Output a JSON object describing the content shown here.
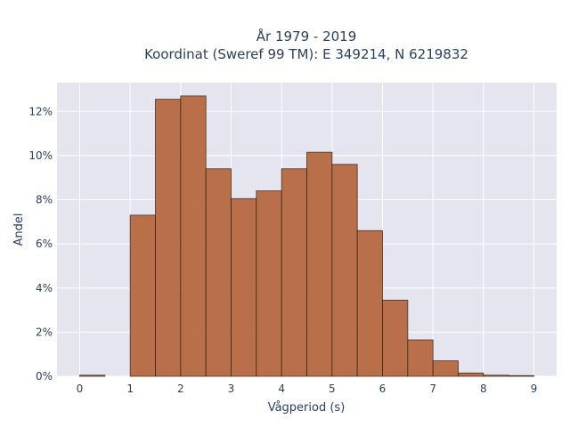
{
  "chart_data": {
    "type": "bar",
    "title_line1": "År 1979 - 2019",
    "title_line2": "Koordinat (Sweref 99 TM): E 349214, N 6219832",
    "xlabel": "Vågperiod (s)",
    "ylabel": "Andel",
    "bin_width": 0.5,
    "bins": [
      {
        "x0": 0.0,
        "value": 0.05
      },
      {
        "x0": 0.5,
        "value": 0.0
      },
      {
        "x0": 1.0,
        "value": 7.3
      },
      {
        "x0": 1.5,
        "value": 12.55
      },
      {
        "x0": 2.0,
        "value": 12.7
      },
      {
        "x0": 2.5,
        "value": 9.4
      },
      {
        "x0": 3.0,
        "value": 8.05
      },
      {
        "x0": 3.5,
        "value": 8.4
      },
      {
        "x0": 4.0,
        "value": 9.4
      },
      {
        "x0": 4.5,
        "value": 10.15
      },
      {
        "x0": 5.0,
        "value": 9.6
      },
      {
        "x0": 5.5,
        "value": 6.6
      },
      {
        "x0": 6.0,
        "value": 3.45
      },
      {
        "x0": 6.5,
        "value": 1.65
      },
      {
        "x0": 7.0,
        "value": 0.7
      },
      {
        "x0": 7.5,
        "value": 0.15
      },
      {
        "x0": 8.0,
        "value": 0.05
      },
      {
        "x0": 8.5,
        "value": 0.03
      }
    ],
    "xlim": [
      -0.45,
      9.45
    ],
    "ylim": [
      0,
      13.3
    ],
    "x_ticks": [
      "0",
      "1",
      "2",
      "3",
      "4",
      "5",
      "6",
      "7",
      "8",
      "9"
    ],
    "y_ticks": [
      "0%",
      "2%",
      "4%",
      "6%",
      "8%",
      "10%",
      "12%"
    ],
    "y_tick_values": [
      0,
      2,
      4,
      6,
      8,
      10,
      12
    ],
    "grid": true,
    "plot_background": "#e5e5f0",
    "bar_color": "#b5673e",
    "bar_edge_color": "#3a2414"
  }
}
